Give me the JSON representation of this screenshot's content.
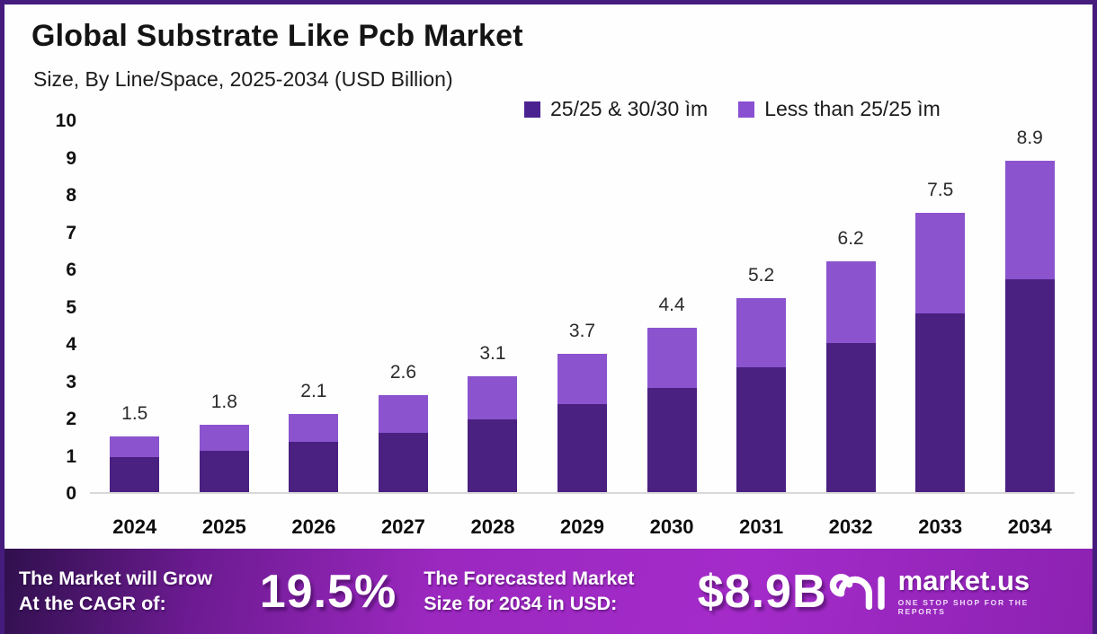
{
  "header": {
    "title": "Global Substrate Like Pcb Market",
    "subtitle": "Size, By Line/Space, 2025-2034 (USD Billion)"
  },
  "legend": {
    "items": [
      {
        "label": "25/25 & 30/30 ìm",
        "color": "#4b2391"
      },
      {
        "label": "Less than 25/25 ìm",
        "color": "#8a50d2"
      }
    ]
  },
  "chart_data": {
    "type": "bar",
    "stacked": true,
    "title": "Global Substrate Like Pcb Market",
    "subtitle": "Size, By Line/Space, 2025-2034 (USD Billion)",
    "xlabel": "",
    "ylabel": "",
    "categories": [
      "2024",
      "2025",
      "2026",
      "2027",
      "2028",
      "2029",
      "2030",
      "2031",
      "2032",
      "2033",
      "2034"
    ],
    "series": [
      {
        "name": "25/25 & 30/30 ìm",
        "color": "#4a2081",
        "values": [
          0.95,
          1.1,
          1.35,
          1.6,
          1.95,
          2.35,
          2.8,
          3.35,
          4.0,
          4.8,
          5.7
        ]
      },
      {
        "name": "Less than 25/25 ìm",
        "color": "#8b54ce",
        "values": [
          0.55,
          0.7,
          0.75,
          1.0,
          1.15,
          1.35,
          1.6,
          1.85,
          2.2,
          2.7,
          3.2
        ]
      }
    ],
    "totals": [
      1.5,
      1.8,
      2.1,
      2.6,
      3.1,
      3.7,
      4.4,
      5.2,
      6.2,
      7.5,
      8.9
    ],
    "total_labels": [
      "1.5",
      "1.8",
      "2.1",
      "2.6",
      "3.1",
      "3.7",
      "4.4",
      "5.2",
      "6.2",
      "7.5",
      "8.9"
    ],
    "ylim": [
      0,
      10
    ],
    "yticks": [
      0,
      1,
      2,
      3,
      4,
      5,
      6,
      7,
      8,
      9,
      10
    ],
    "grid": false,
    "legend_position": "top-right"
  },
  "banner": {
    "cagr_label_line1": "The Market will Grow",
    "cagr_label_line2": "At the CAGR of:",
    "cagr_value": "19.5%",
    "forecast_label_line1": "The Forecasted Market",
    "forecast_label_line2": "Size for 2034 in USD:",
    "forecast_value": "$8.9B",
    "logo_text": "market.us",
    "logo_tagline": "ONE STOP SHOP FOR THE REPORTS"
  },
  "colors": {
    "frame_border": "#451c7d",
    "dark_segment": "#4a2081",
    "light_segment": "#8b54ce",
    "banner_gradient_start": "#30104d",
    "banner_gradient_mid": "#a42bc9",
    "banner_gradient_end": "#8c22b2",
    "axis_line": "#d8d8d8"
  }
}
